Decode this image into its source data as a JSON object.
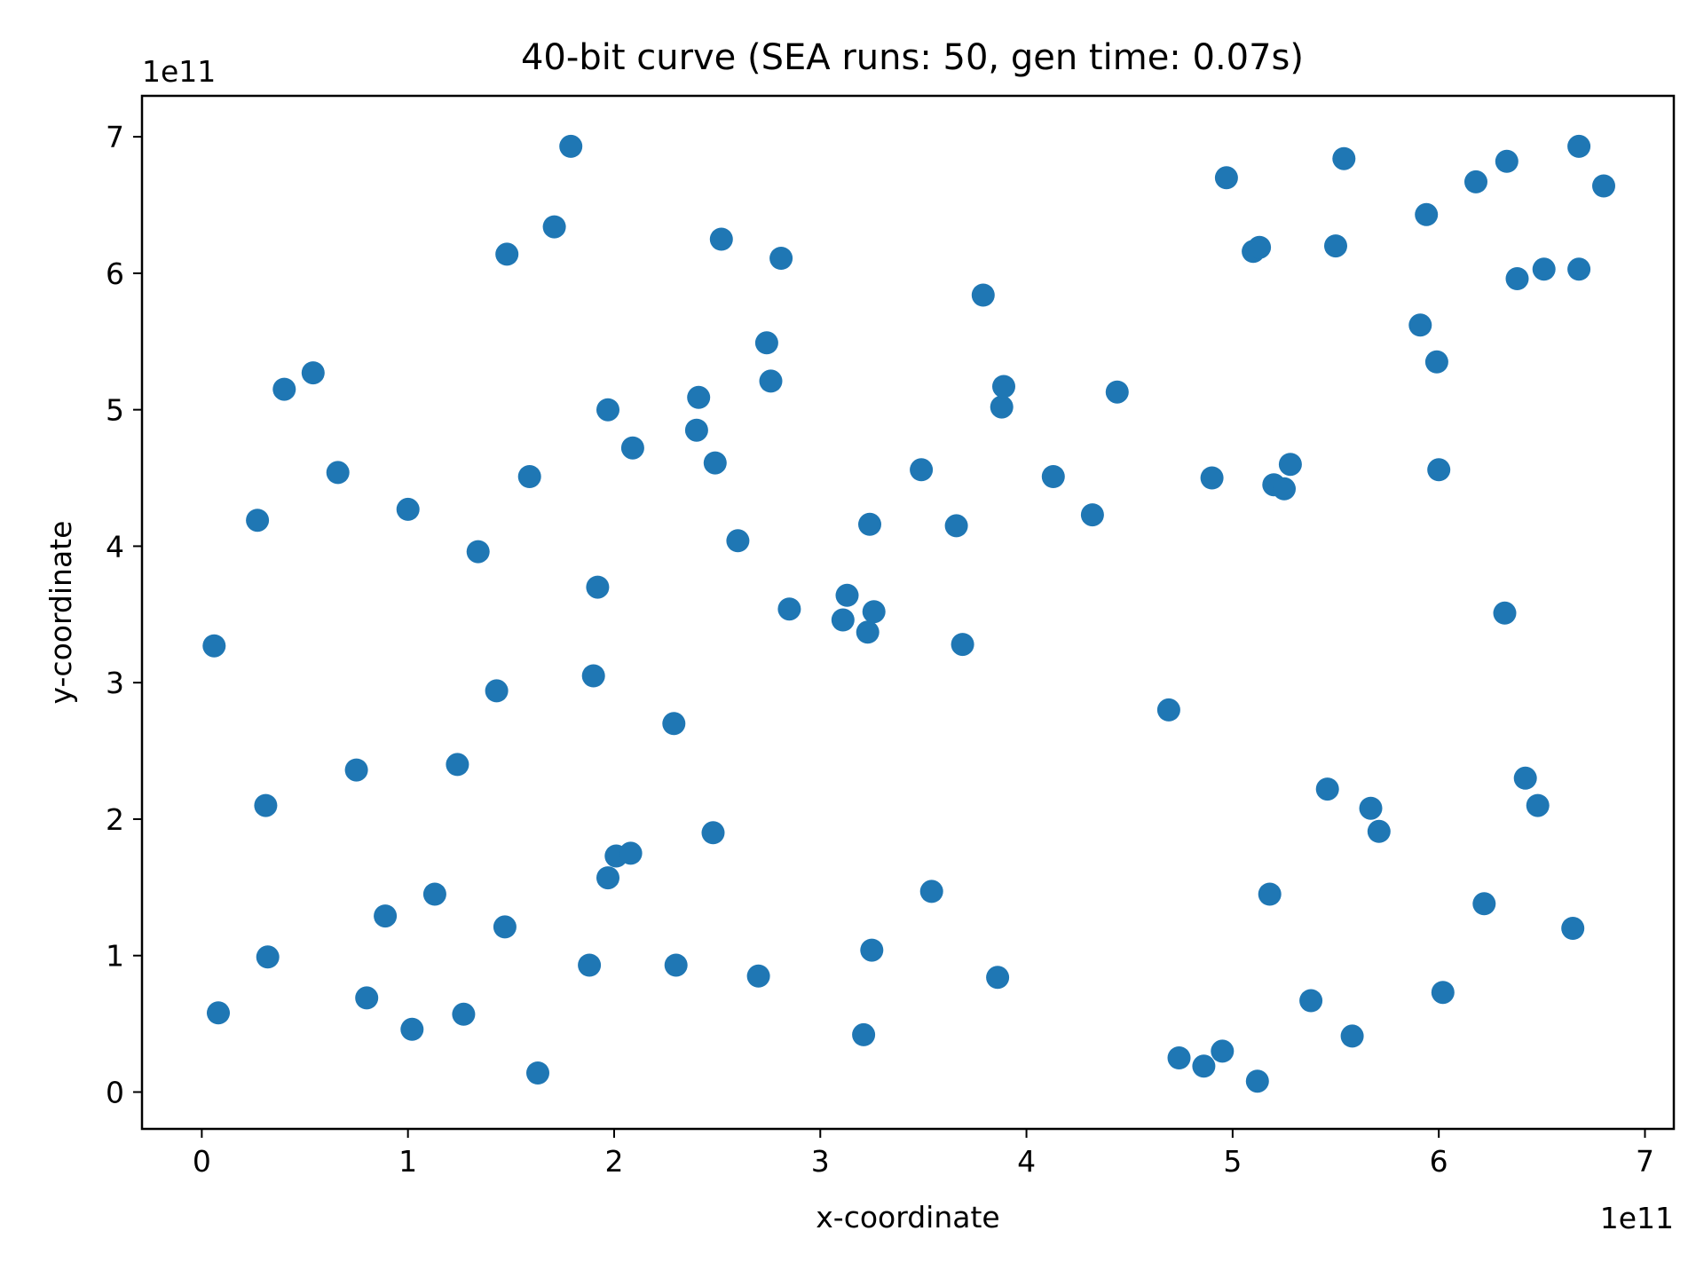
{
  "chart_data": {
    "type": "scatter",
    "title": "40-bit curve  (SEA runs: 50,  gen time: 0.07s)",
    "xlabel": "x-coordinate",
    "ylabel": "y-coordinate",
    "x_offset_text": "1e11",
    "y_offset_text": "1e11",
    "xlim": [
      -0.29,
      7.14
    ],
    "ylim": [
      -0.27,
      7.3
    ],
    "xticks": [
      0,
      1,
      2,
      3,
      4,
      5,
      6,
      7
    ],
    "yticks": [
      0,
      1,
      2,
      3,
      4,
      5,
      6,
      7
    ],
    "xtick_labels": [
      "0",
      "1",
      "2",
      "3",
      "4",
      "5",
      "6",
      "7"
    ],
    "ytick_labels": [
      "0",
      "1",
      "2",
      "3",
      "4",
      "5",
      "6",
      "7"
    ],
    "grid": false,
    "point_color": "#1f77b4",
    "series": [
      {
        "points": [
          [
            0.06,
            3.27
          ],
          [
            0.08,
            0.58
          ],
          [
            0.27,
            4.19
          ],
          [
            0.31,
            2.1
          ],
          [
            0.32,
            0.99
          ],
          [
            0.4,
            5.15
          ],
          [
            0.54,
            5.27
          ],
          [
            0.66,
            4.54
          ],
          [
            0.75,
            2.36
          ],
          [
            0.8,
            0.69
          ],
          [
            0.89,
            1.29
          ],
          [
            1.0,
            4.27
          ],
          [
            1.02,
            0.46
          ],
          [
            1.13,
            1.45
          ],
          [
            1.24,
            2.4
          ],
          [
            1.27,
            0.57
          ],
          [
            1.34,
            3.96
          ],
          [
            1.43,
            2.94
          ],
          [
            1.47,
            1.21
          ],
          [
            1.48,
            6.14
          ],
          [
            1.59,
            4.51
          ],
          [
            1.63,
            0.14
          ],
          [
            1.71,
            6.34
          ],
          [
            1.79,
            6.93
          ],
          [
            1.88,
            0.93
          ],
          [
            1.9,
            3.05
          ],
          [
            1.92,
            3.7
          ],
          [
            1.97,
            5.0
          ],
          [
            1.97,
            1.57
          ],
          [
            2.01,
            1.73
          ],
          [
            2.08,
            1.75
          ],
          [
            2.09,
            4.72
          ],
          [
            2.29,
            2.7
          ],
          [
            2.3,
            0.93
          ],
          [
            2.4,
            4.85
          ],
          [
            2.41,
            5.09
          ],
          [
            2.48,
            1.9
          ],
          [
            2.49,
            4.61
          ],
          [
            2.52,
            6.25
          ],
          [
            2.6,
            4.04
          ],
          [
            2.7,
            0.85
          ],
          [
            2.74,
            5.49
          ],
          [
            2.76,
            5.21
          ],
          [
            2.81,
            6.11
          ],
          [
            2.85,
            3.54
          ],
          [
            3.11,
            3.46
          ],
          [
            3.13,
            3.64
          ],
          [
            3.21,
            0.42
          ],
          [
            3.23,
            3.37
          ],
          [
            3.24,
            4.16
          ],
          [
            3.25,
            1.04
          ],
          [
            3.26,
            3.52
          ],
          [
            3.49,
            4.56
          ],
          [
            3.54,
            1.47
          ],
          [
            3.66,
            4.15
          ],
          [
            3.69,
            3.28
          ],
          [
            3.79,
            5.84
          ],
          [
            3.86,
            0.84
          ],
          [
            3.88,
            5.02
          ],
          [
            3.89,
            5.17
          ],
          [
            4.13,
            4.51
          ],
          [
            4.32,
            4.23
          ],
          [
            4.44,
            5.13
          ],
          [
            4.69,
            2.8
          ],
          [
            4.74,
            0.25
          ],
          [
            4.86,
            0.19
          ],
          [
            4.9,
            4.5
          ],
          [
            4.95,
            0.3
          ],
          [
            4.97,
            6.7
          ],
          [
            5.1,
            6.16
          ],
          [
            5.12,
            0.08
          ],
          [
            5.13,
            6.19
          ],
          [
            5.18,
            1.45
          ],
          [
            5.2,
            4.45
          ],
          [
            5.25,
            4.42
          ],
          [
            5.28,
            4.6
          ],
          [
            5.38,
            0.67
          ],
          [
            5.46,
            2.22
          ],
          [
            5.5,
            6.2
          ],
          [
            5.54,
            6.84
          ],
          [
            5.58,
            0.41
          ],
          [
            5.67,
            2.08
          ],
          [
            5.71,
            1.91
          ],
          [
            5.91,
            5.62
          ],
          [
            5.94,
            6.43
          ],
          [
            5.99,
            5.35
          ],
          [
            6.0,
            4.56
          ],
          [
            6.02,
            0.73
          ],
          [
            6.18,
            6.67
          ],
          [
            6.22,
            1.38
          ],
          [
            6.32,
            3.51
          ],
          [
            6.33,
            6.82
          ],
          [
            6.38,
            5.96
          ],
          [
            6.42,
            2.3
          ],
          [
            6.48,
            2.1
          ],
          [
            6.51,
            6.03
          ],
          [
            6.65,
            1.2
          ],
          [
            6.68,
            6.03
          ],
          [
            6.68,
            6.93
          ],
          [
            6.8,
            6.64
          ]
        ]
      }
    ]
  }
}
